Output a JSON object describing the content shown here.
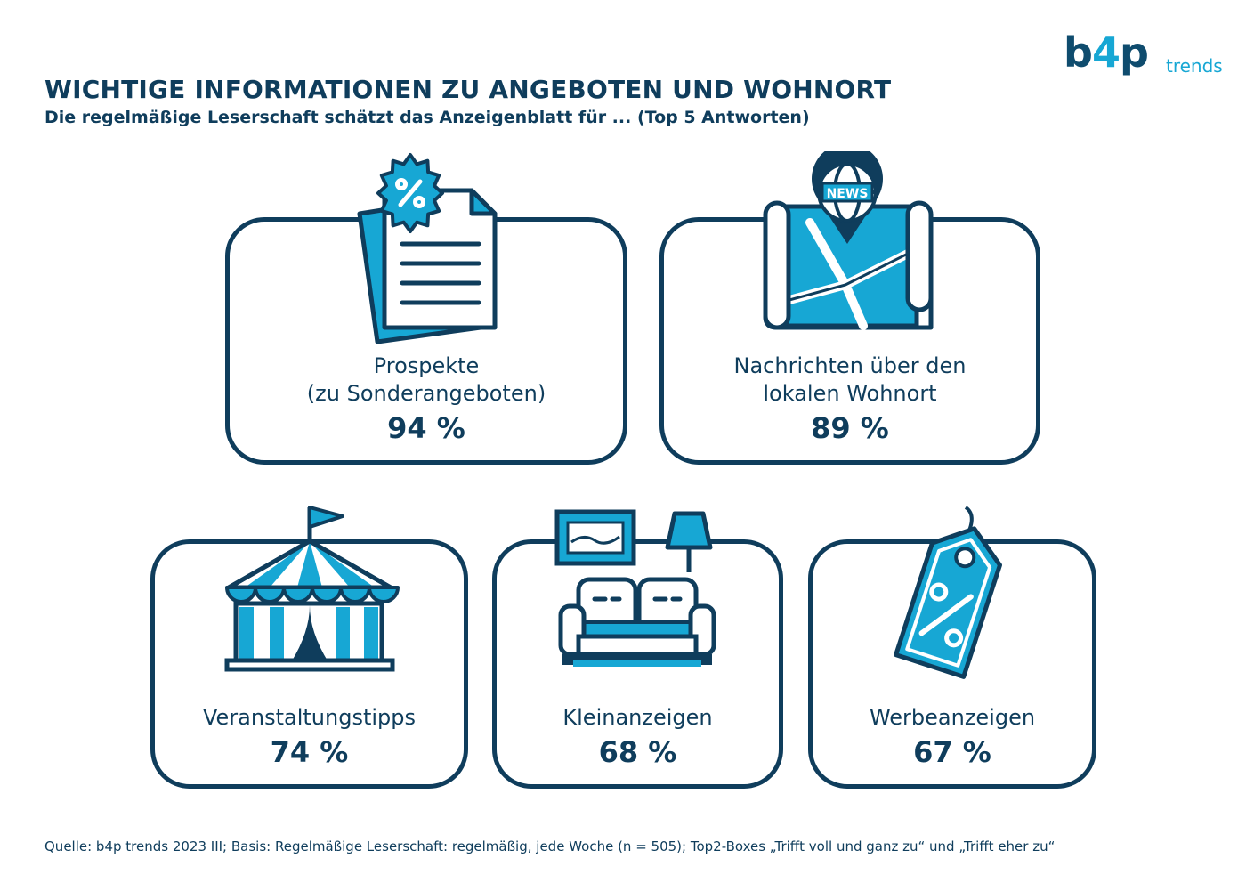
{
  "logo": {
    "main_b": "b",
    "main_4": "4",
    "main_p": "p",
    "sub": "trends"
  },
  "header": {
    "title": "WICHTIGE INFORMATIONEN ZU ANGEBOTEN UND WOHNORT",
    "subtitle": "Die regelmäßige Leserschaft schätzt das Anzeigenblatt für ... (Top 5 Antworten)"
  },
  "cards": [
    {
      "label": "Prospekte\n(zu Sonderangeboten)",
      "value": "94 %",
      "icon": "brochure-icon"
    },
    {
      "label": "Nachrichten über den\nlokalen Wohnort",
      "value": "89 %",
      "icon": "map-news-icon",
      "icon_text": "NEWS"
    },
    {
      "label": "Veranstaltungstipps",
      "value": "74 %",
      "icon": "circus-tent-icon"
    },
    {
      "label": "Kleinanzeigen",
      "value": "68 %",
      "icon": "sofa-icon"
    },
    {
      "label": "Werbeanzeigen",
      "value": "67 %",
      "icon": "price-tag-icon"
    }
  ],
  "colors": {
    "navy": "#0f3d5c",
    "accent": "#17a7d4",
    "white": "#ffffff"
  },
  "footer": {
    "source": "Quelle: b4p trends 2023 III; Basis: Regelmäßige Leserschaft: regelmäßig, jede Woche (n = 505); Top2-Boxes „Trifft voll und ganz zu“ und „Trifft eher zu“"
  }
}
